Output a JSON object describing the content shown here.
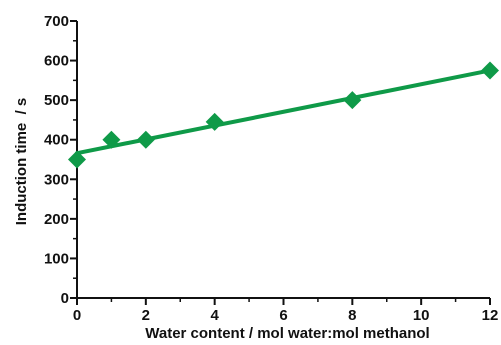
{
  "chart_data": {
    "type": "scatter",
    "title": "",
    "xlabel": "Water content / mol water:mol methanol",
    "ylabel": "Induction time  / s",
    "xlim": [
      0,
      12
    ],
    "ylim": [
      0,
      700
    ],
    "x_ticks": [
      0,
      2,
      4,
      6,
      8,
      10,
      12
    ],
    "y_ticks": [
      0,
      100,
      200,
      300,
      400,
      500,
      600,
      700
    ],
    "grid": false,
    "series": [
      {
        "marker": "diamond",
        "color": "#0f9a48",
        "points": [
          {
            "x": 0,
            "y": 350
          },
          {
            "x": 1,
            "y": 400
          },
          {
            "x": 2,
            "y": 400
          },
          {
            "x": 4,
            "y": 445
          },
          {
            "x": 8,
            "y": 500
          },
          {
            "x": 12,
            "y": 575
          }
        ]
      }
    ],
    "trendline": {
      "type": "linear",
      "color": "#0f9a48",
      "x": [
        0,
        12
      ],
      "y": [
        366,
        575
      ]
    }
  }
}
